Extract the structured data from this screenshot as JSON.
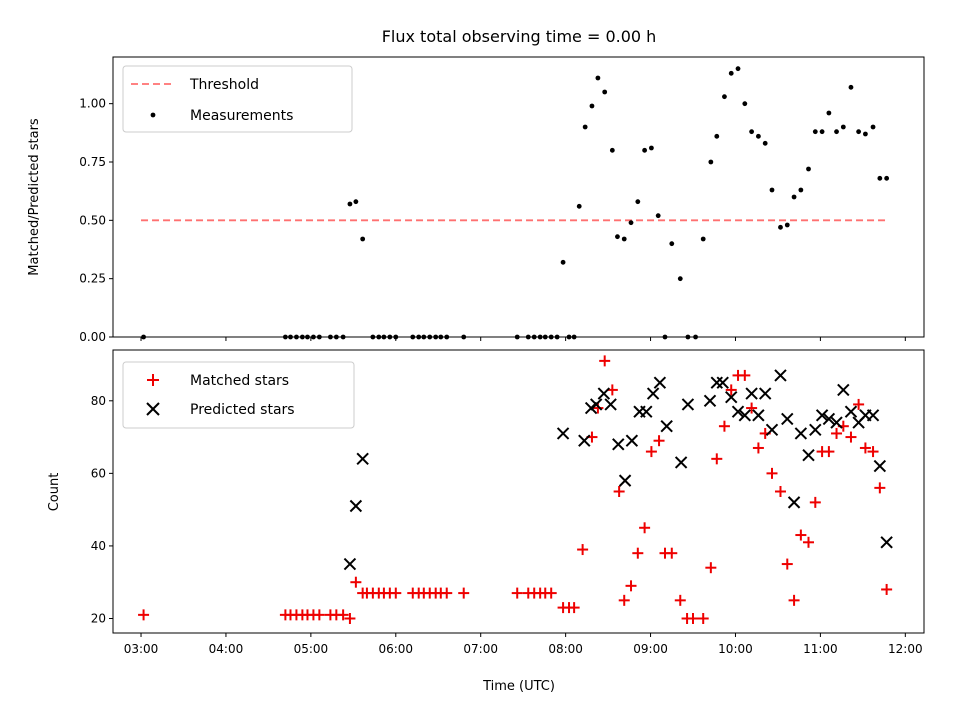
{
  "title": "Flux total observing time = 0.00 h",
  "colors": {
    "threshold": "#ff7070",
    "matched": "#ee0000",
    "predicted": "#000000",
    "measurement": "#000000"
  },
  "chart_data": [
    {
      "type": "scatter",
      "ylabel": "Matched/Predicted stars",
      "xlim": [
        2.67,
        12.22
      ],
      "ylim": [
        0.0,
        1.2
      ],
      "yticks": [
        "0.00",
        "0.25",
        "0.50",
        "0.75",
        "1.00"
      ],
      "ytick_values": [
        0.0,
        0.25,
        0.5,
        0.75,
        1.0
      ],
      "legend": {
        "position": "upper-left",
        "entries": [
          "Threshold",
          "Measurements"
        ]
      },
      "series": [
        {
          "name": "Threshold",
          "style": "dashed-line",
          "x": [
            3.0,
            11.8
          ],
          "y": [
            0.5,
            0.5
          ]
        },
        {
          "name": "Measurements",
          "style": "dot",
          "x": [
            3.03,
            4.7,
            4.76,
            4.83,
            4.9,
            4.96,
            5.03,
            5.1,
            5.23,
            5.3,
            5.38,
            5.46,
            5.53,
            5.61,
            5.73,
            5.8,
            5.86,
            5.93,
            6.0,
            6.2,
            6.27,
            6.33,
            6.4,
            6.47,
            6.53,
            6.6,
            6.8,
            7.43,
            7.56,
            7.63,
            7.7,
            7.76,
            7.83,
            7.9,
            7.97,
            8.04,
            8.1,
            8.16,
            8.23,
            8.31,
            8.38,
            8.46,
            8.55,
            8.61,
            8.69,
            8.77,
            8.85,
            8.93,
            9.01,
            9.09,
            9.17,
            9.25,
            9.35,
            9.44,
            9.53,
            9.62,
            9.71,
            9.78,
            9.87,
            9.95,
            10.03,
            10.11,
            10.19,
            10.27,
            10.35,
            10.43,
            10.53,
            10.61,
            10.69,
            10.77,
            10.86,
            10.94,
            11.02,
            11.1,
            11.19,
            11.27,
            11.36,
            11.45,
            11.53,
            11.62,
            11.7,
            11.78
          ],
          "y": [
            0.0,
            0.0,
            0.0,
            0.0,
            0.0,
            0.0,
            0.0,
            0.0,
            0.0,
            0.0,
            0.0,
            0.57,
            0.58,
            0.42,
            0.0,
            0.0,
            0.0,
            0.0,
            0.0,
            0.0,
            0.0,
            0.0,
            0.0,
            0.0,
            0.0,
            0.0,
            0.0,
            0.0,
            0.0,
            0.0,
            0.0,
            0.0,
            0.0,
            0.0,
            0.32,
            0.0,
            0.0,
            0.56,
            0.9,
            0.99,
            1.11,
            1.05,
            0.8,
            0.43,
            0.42,
            0.49,
            0.58,
            0.8,
            0.81,
            0.52,
            0.0,
            0.4,
            0.25,
            0.0,
            0.0,
            0.42,
            0.75,
            0.86,
            1.03,
            1.13,
            1.15,
            1.0,
            0.88,
            0.86,
            0.83,
            0.63,
            0.47,
            0.48,
            0.6,
            0.63,
            0.72,
            0.88,
            0.88,
            0.96,
            0.88,
            0.9,
            1.07,
            0.88,
            0.87,
            0.9,
            0.68,
            0.68
          ]
        }
      ]
    },
    {
      "type": "scatter",
      "xlabel": "Time (UTC)",
      "ylabel": "Count",
      "xlim": [
        2.67,
        12.22
      ],
      "ylim": [
        16.0,
        94.0
      ],
      "xticks": [
        "03:00",
        "04:00",
        "05:00",
        "06:00",
        "07:00",
        "08:00",
        "09:00",
        "10:00",
        "11:00",
        "12:00"
      ],
      "xtick_values": [
        3,
        4,
        5,
        6,
        7,
        8,
        9,
        10,
        11,
        12
      ],
      "yticks": [
        "20",
        "40",
        "60",
        "80"
      ],
      "ytick_values": [
        20,
        40,
        60,
        80
      ],
      "legend": {
        "position": "upper-left",
        "entries": [
          "Matched stars",
          "Predicted stars"
        ]
      },
      "series": [
        {
          "name": "Matched stars",
          "style": "plus",
          "x": [
            3.03,
            4.7,
            4.76,
            4.83,
            4.9,
            4.96,
            5.03,
            5.1,
            5.23,
            5.3,
            5.38,
            5.46,
            5.53,
            5.61,
            5.66,
            5.73,
            5.8,
            5.86,
            5.93,
            6.0,
            6.2,
            6.27,
            6.33,
            6.4,
            6.47,
            6.53,
            6.6,
            6.8,
            7.43,
            7.56,
            7.63,
            7.7,
            7.76,
            7.83,
            7.97,
            8.04,
            8.1,
            8.2,
            8.31,
            8.38,
            8.46,
            8.55,
            8.63,
            8.69,
            8.77,
            8.85,
            8.93,
            9.01,
            9.1,
            9.17,
            9.25,
            9.35,
            9.43,
            9.5,
            9.62,
            9.71,
            9.78,
            9.87,
            9.95,
            10.03,
            10.11,
            10.19,
            10.27,
            10.35,
            10.43,
            10.53,
            10.61,
            10.69,
            10.77,
            10.86,
            10.94,
            11.02,
            11.1,
            11.19,
            11.27,
            11.36,
            11.45,
            11.53,
            11.62,
            11.7,
            11.78
          ],
          "y": [
            21,
            21,
            21,
            21,
            21,
            21,
            21,
            21,
            21,
            21,
            21,
            20,
            30,
            27,
            27,
            27,
            27,
            27,
            27,
            27,
            27,
            27,
            27,
            27,
            27,
            27,
            27,
            27,
            27,
            27,
            27,
            27,
            27,
            27,
            23,
            23,
            23,
            39,
            70,
            78,
            91,
            83,
            55,
            25,
            29,
            38,
            45,
            66,
            69,
            38,
            38,
            25,
            20,
            20,
            20,
            34,
            64,
            73,
            83,
            87,
            87,
            78,
            67,
            71,
            60,
            55,
            35,
            25,
            43,
            41,
            52,
            66,
            66,
            71,
            73,
            70,
            79,
            67,
            66,
            56,
            28
          ]
        },
        {
          "name": "Predicted stars",
          "style": "cross",
          "x": [
            5.46,
            5.53,
            5.61,
            7.97,
            8.22,
            8.3,
            8.36,
            8.45,
            8.53,
            8.62,
            8.7,
            8.78,
            8.87,
            8.95,
            9.03,
            9.11,
            9.19,
            9.36,
            9.44,
            9.7,
            9.78,
            9.85,
            9.95,
            10.03,
            10.11,
            10.19,
            10.27,
            10.35,
            10.43,
            10.53,
            10.61,
            10.69,
            10.77,
            10.86,
            10.94,
            11.02,
            11.1,
            11.19,
            11.27,
            11.36,
            11.45,
            11.53,
            11.62,
            11.7,
            11.78
          ],
          "y": [
            35,
            51,
            64,
            71,
            69,
            78,
            79,
            82,
            79,
            68,
            58,
            69,
            77,
            77,
            82,
            85,
            73,
            63,
            79,
            80,
            85,
            85,
            81,
            77,
            76,
            82,
            76,
            82,
            72,
            87,
            75,
            52,
            71,
            65,
            72,
            76,
            75,
            74,
            83,
            77,
            74,
            76,
            76,
            62,
            41
          ]
        }
      ]
    }
  ]
}
